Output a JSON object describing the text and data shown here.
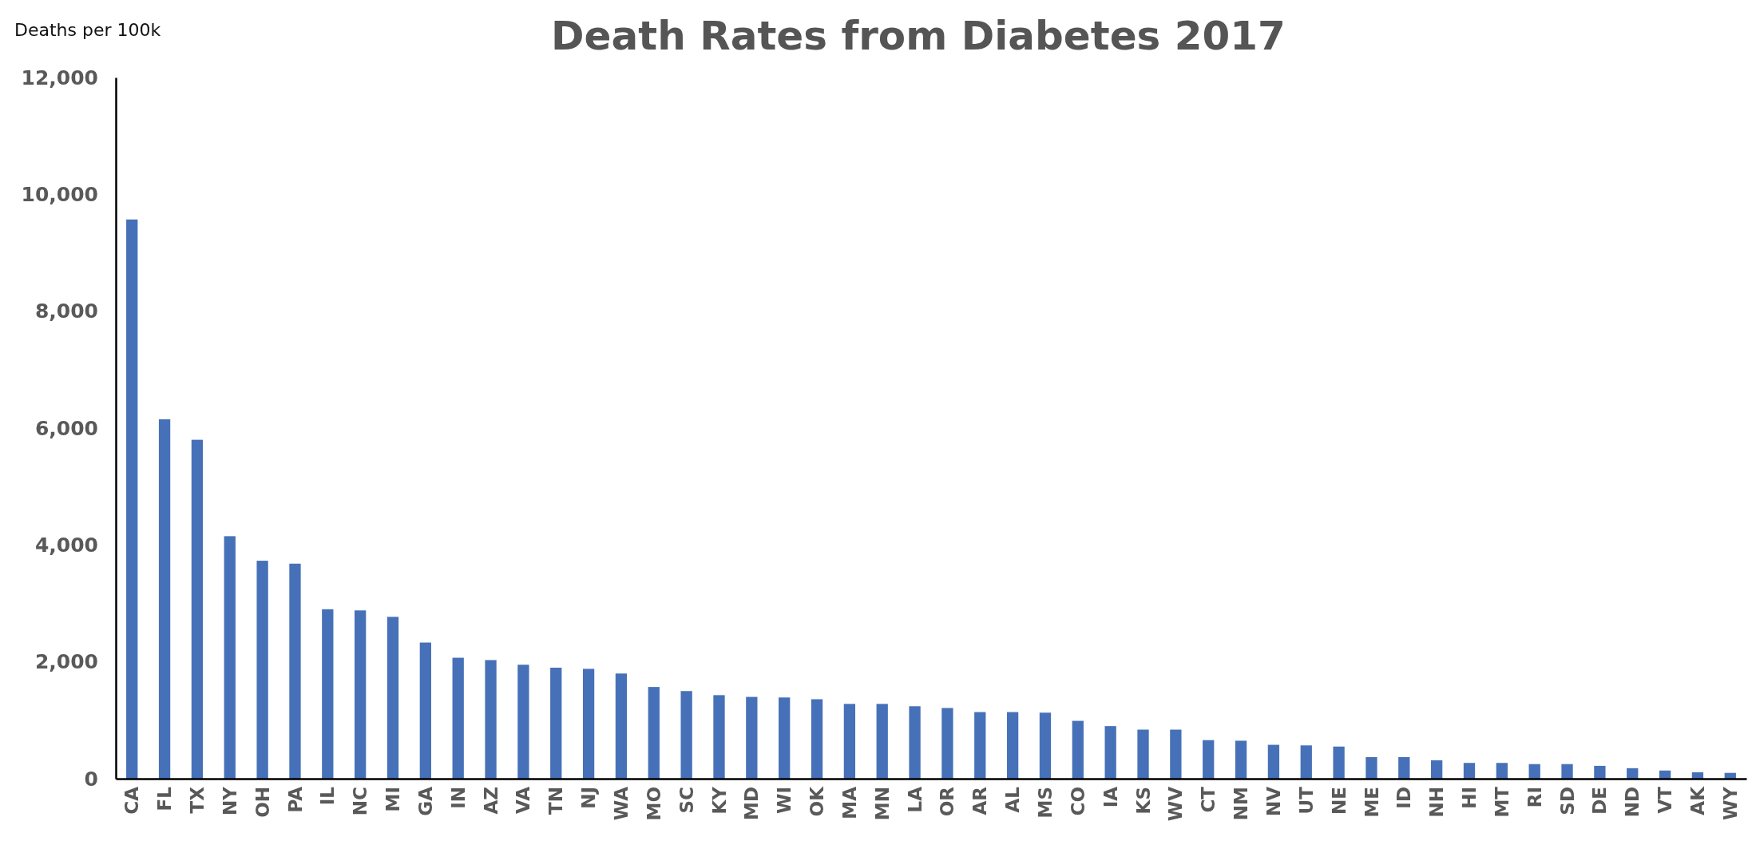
{
  "chart_data": {
    "type": "bar",
    "title": "Death Rates from Diabetes 2017",
    "ylabel": "Deaths per 100k",
    "categories": [
      "CA",
      "FL",
      "TX",
      "NY",
      "OH",
      "PA",
      "IL",
      "NC",
      "MI",
      "GA",
      "IN",
      "AZ",
      "VA",
      "TN",
      "NJ",
      "WA",
      "MO",
      "SC",
      "KY",
      "MD",
      "WI",
      "OK",
      "MA",
      "MN",
      "LA",
      "OR",
      "AR",
      "AL",
      "MS",
      "CO",
      "IA",
      "KS",
      "WV",
      "CT",
      "NM",
      "NV",
      "UT",
      "NE",
      "ME",
      "ID",
      "NH",
      "HI",
      "MT",
      "RI",
      "SD",
      "DE",
      "ND",
      "VT",
      "AK",
      "WY"
    ],
    "values": [
      9570,
      6150,
      5800,
      4150,
      3730,
      3680,
      2900,
      2880,
      2770,
      2330,
      2070,
      2030,
      1950,
      1900,
      1880,
      1800,
      1570,
      1500,
      1430,
      1400,
      1390,
      1360,
      1280,
      1280,
      1240,
      1210,
      1140,
      1140,
      1130,
      990,
      900,
      840,
      840,
      660,
      650,
      580,
      570,
      550,
      370,
      370,
      315,
      270,
      270,
      250,
      250,
      220,
      180,
      140,
      110,
      100
    ],
    "color": "#4671b8",
    "ylim": [
      0,
      12000
    ],
    "yticks": [
      {
        "value": 0,
        "label": "0"
      },
      {
        "value": 2000,
        "label": "2,000"
      },
      {
        "value": 4000,
        "label": "4,000"
      },
      {
        "value": 6000,
        "label": "6,000"
      },
      {
        "value": 8000,
        "label": "8,000"
      },
      {
        "value": 10000,
        "label": "10,000"
      },
      {
        "value": 12000,
        "label": "12,000"
      }
    ],
    "grid": false
  }
}
